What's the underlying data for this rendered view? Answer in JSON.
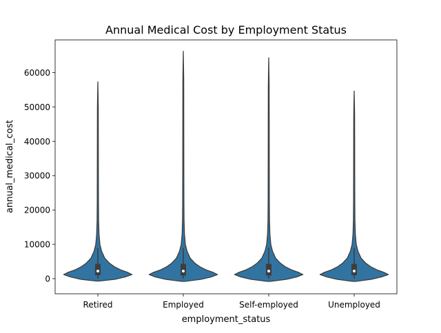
{
  "chart_data": {
    "type": "violin",
    "title": "Annual Medical Cost by Employment Status",
    "xlabel": "employment_status",
    "ylabel": "annual_medical_cost",
    "categories": [
      "Retired",
      "Employed",
      "Self-employed",
      "Unemployed"
    ],
    "ylim": [
      -4400,
      69500
    ],
    "yticks": [
      0,
      10000,
      20000,
      30000,
      40000,
      50000,
      60000
    ],
    "ytick_labels": [
      "0",
      "10000",
      "20000",
      "30000",
      "40000",
      "50000",
      "60000"
    ],
    "grid": false,
    "legend": "none",
    "colors": {
      "violin_fill": "#3274a1",
      "violin_edge": "#3d3d3d",
      "box": "#3d3d3d",
      "median": "#ffffff"
    },
    "violins": [
      {
        "category": "Retired",
        "min": -700,
        "q1": 1000,
        "median": 2200,
        "q3": 4300,
        "whisker_low": 0,
        "whisker_high": 9000,
        "max": 57300,
        "profile": [
          [
            -700,
            0.02
          ],
          [
            -200,
            0.25
          ],
          [
            500,
            0.4
          ],
          [
            1200,
            0.5
          ],
          [
            1800,
            0.44
          ],
          [
            2500,
            0.34
          ],
          [
            3500,
            0.24
          ],
          [
            4500,
            0.17
          ],
          [
            6000,
            0.1
          ],
          [
            8000,
            0.055
          ],
          [
            10000,
            0.03
          ],
          [
            13000,
            0.017
          ],
          [
            17000,
            0.011
          ],
          [
            22000,
            0.009
          ],
          [
            30000,
            0.008
          ],
          [
            40000,
            0.007
          ],
          [
            50000,
            0.006
          ],
          [
            57300,
            0.0
          ]
        ]
      },
      {
        "category": "Employed",
        "min": -800,
        "q1": 900,
        "median": 2200,
        "q3": 4300,
        "whisker_low": 0,
        "whisker_high": 9000,
        "max": 66200,
        "profile": [
          [
            -800,
            0.02
          ],
          [
            -200,
            0.26
          ],
          [
            500,
            0.41
          ],
          [
            1200,
            0.5
          ],
          [
            1800,
            0.44
          ],
          [
            2500,
            0.34
          ],
          [
            3500,
            0.24
          ],
          [
            4500,
            0.17
          ],
          [
            6000,
            0.1
          ],
          [
            8000,
            0.055
          ],
          [
            10000,
            0.03
          ],
          [
            13000,
            0.017
          ],
          [
            17000,
            0.011
          ],
          [
            22000,
            0.009
          ],
          [
            30000,
            0.008
          ],
          [
            45000,
            0.007
          ],
          [
            58000,
            0.006
          ],
          [
            66200,
            0.0
          ]
        ]
      },
      {
        "category": "Self-employed",
        "min": -800,
        "q1": 900,
        "median": 2200,
        "q3": 4300,
        "whisker_low": 0,
        "whisker_high": 9000,
        "max": 64300,
        "profile": [
          [
            -800,
            0.02
          ],
          [
            -200,
            0.26
          ],
          [
            500,
            0.41
          ],
          [
            1200,
            0.5
          ],
          [
            1800,
            0.44
          ],
          [
            2500,
            0.34
          ],
          [
            3500,
            0.24
          ],
          [
            4500,
            0.17
          ],
          [
            6000,
            0.1
          ],
          [
            8000,
            0.055
          ],
          [
            10000,
            0.03
          ],
          [
            13000,
            0.017
          ],
          [
            17000,
            0.011
          ],
          [
            22000,
            0.009
          ],
          [
            30000,
            0.008
          ],
          [
            45000,
            0.007
          ],
          [
            56000,
            0.006
          ],
          [
            64300,
            0.0
          ]
        ]
      },
      {
        "category": "Unemployed",
        "min": -800,
        "q1": 1000,
        "median": 2200,
        "q3": 4300,
        "whisker_low": 0,
        "whisker_high": 9000,
        "max": 54600,
        "profile": [
          [
            -800,
            0.02
          ],
          [
            -200,
            0.25
          ],
          [
            500,
            0.4
          ],
          [
            1200,
            0.5
          ],
          [
            1800,
            0.44
          ],
          [
            2500,
            0.34
          ],
          [
            3500,
            0.24
          ],
          [
            4500,
            0.17
          ],
          [
            6000,
            0.1
          ],
          [
            8000,
            0.055
          ],
          [
            10000,
            0.03
          ],
          [
            13000,
            0.017
          ],
          [
            17000,
            0.011
          ],
          [
            22000,
            0.009
          ],
          [
            30000,
            0.008
          ],
          [
            40000,
            0.007
          ],
          [
            48000,
            0.006
          ],
          [
            54600,
            0.0
          ]
        ]
      }
    ]
  }
}
